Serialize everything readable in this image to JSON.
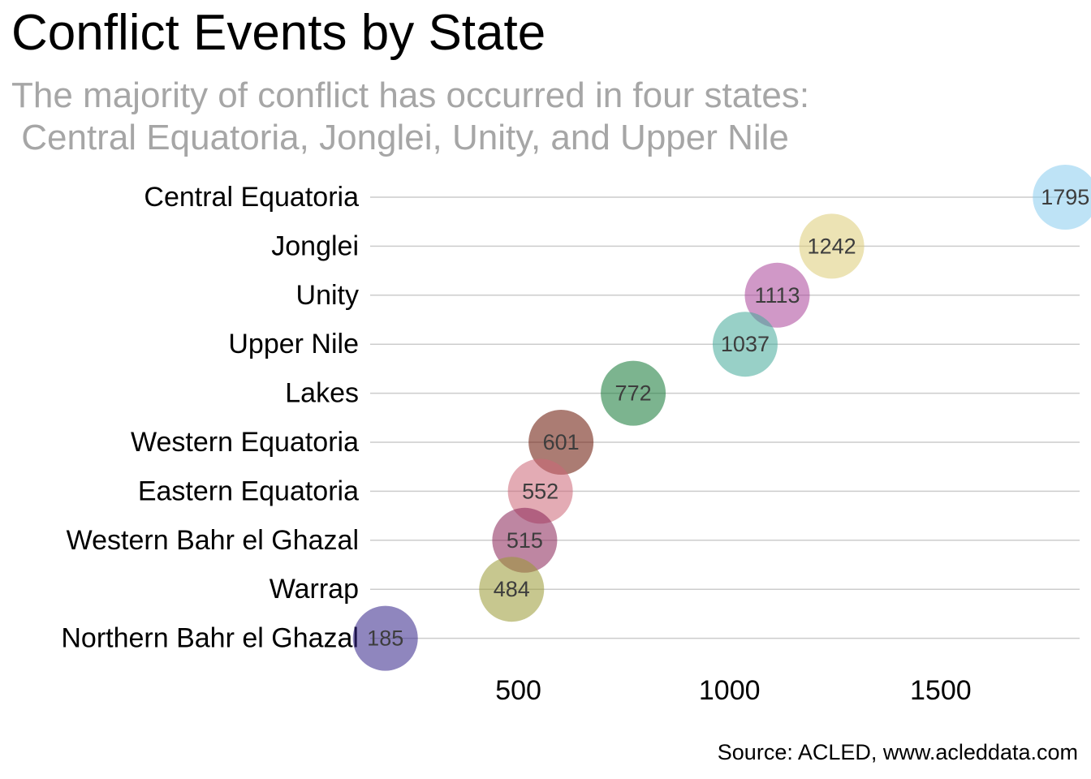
{
  "chart_data": {
    "type": "scatter",
    "title": "Conflict Events by State",
    "subtitle_lines": [
      "The majority of conflict has occurred in four states:",
      " Central Equatoria, Jonglei, Unity, and Upper Nile"
    ],
    "caption": "Source: ACLED, www.acleddata.com",
    "xlabel": "",
    "ylabel": "",
    "x_ticks": [
      500,
      1000,
      1500
    ],
    "x_tick_labels": [
      "500",
      "1000",
      "1500"
    ],
    "xlim": [
      150,
      1830
    ],
    "grid": "horizontal",
    "points": [
      {
        "category": "Central Equatoria",
        "value": 1795,
        "label": "1795",
        "color": "#88CCEE"
      },
      {
        "category": "Jonglei",
        "value": 1242,
        "label": "1242",
        "color": "#DDCC77"
      },
      {
        "category": "Unity",
        "value": 1113,
        "label": "1113",
        "color": "#AA4499"
      },
      {
        "category": "Upper Nile",
        "value": 1037,
        "label": "1037",
        "color": "#44AA99"
      },
      {
        "category": "Lakes",
        "value": 772,
        "label": "772",
        "color": "#117733"
      },
      {
        "category": "Western Equatoria",
        "value": 601,
        "label": "601",
        "color": "#661100"
      },
      {
        "category": "Eastern Equatoria",
        "value": 552,
        "label": "552",
        "color": "#CC6677"
      },
      {
        "category": "Western Bahr el Ghazal",
        "value": 515,
        "label": "515",
        "color": "#882255"
      },
      {
        "category": "Warrap",
        "value": 484,
        "label": "484",
        "color": "#999933"
      },
      {
        "category": "Northern Bahr el Ghazal",
        "value": 185,
        "label": "185",
        "color": "#332288"
      }
    ]
  }
}
